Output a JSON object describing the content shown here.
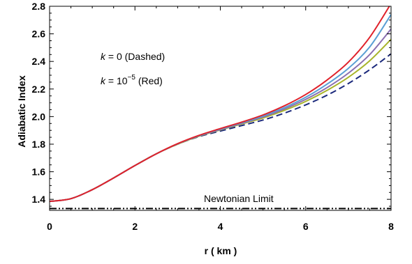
{
  "chart_data": {
    "type": "line",
    "xlabel": "r  ( km )",
    "ylabel": "Adiabatic  Index",
    "xlim": [
      0,
      8
    ],
    "ylim": [
      1.32,
      2.8
    ],
    "x_ticks": [
      0,
      2,
      4,
      6,
      8
    ],
    "y_ticks": [
      1.4,
      1.6,
      1.8,
      2.0,
      2.2,
      2.4,
      2.6,
      2.8
    ],
    "x_tick_labels": [
      "0",
      "2",
      "4",
      "6",
      "8"
    ],
    "y_tick_labels": [
      "1.4",
      "1.6",
      "1.8",
      "2.0",
      "2.2",
      "2.4",
      "2.6",
      "2.8"
    ],
    "grid": false,
    "annotations": {
      "k0_prefix": "k",
      "k0_rest": " = 0  (Dashed)",
      "k1_prefix": "k",
      "k1_mid": " =  10",
      "k1_exp": "−5",
      "k1_rest": " (Red)"
    },
    "newtonian_limit": {
      "label": "Newtonian Limit",
      "value": 1.3333,
      "style": "dash-dot-dot",
      "color": "#000000"
    },
    "x": [
      0,
      0.5,
      1,
      1.5,
      2,
      2.5,
      3,
      3.5,
      4,
      4.5,
      5,
      5.5,
      6,
      6.5,
      7,
      7.5,
      8
    ],
    "series": [
      {
        "values": [
          1.385,
          1.405,
          1.47,
          1.555,
          1.645,
          1.73,
          1.8,
          1.855,
          1.895,
          1.935,
          1.975,
          2.025,
          2.085,
          2.155,
          2.24,
          2.34,
          2.455
        ],
        "color": "#1c2a7c",
        "style": "dashed"
      },
      {
        "values": [
          1.385,
          1.405,
          1.47,
          1.555,
          1.645,
          1.73,
          1.8,
          1.858,
          1.903,
          1.947,
          1.99,
          2.045,
          2.11,
          2.19,
          2.285,
          2.405,
          2.56
        ],
        "color": "#a8b42a",
        "style": "solid"
      },
      {
        "values": [
          1.385,
          1.405,
          1.47,
          1.555,
          1.645,
          1.73,
          1.802,
          1.86,
          1.906,
          1.951,
          1.997,
          2.055,
          2.125,
          2.21,
          2.315,
          2.45,
          2.635
        ],
        "color": "#8a6fb0",
        "style": "solid"
      },
      {
        "values": [
          1.385,
          1.405,
          1.47,
          1.555,
          1.645,
          1.73,
          1.803,
          1.862,
          1.91,
          1.956,
          2.005,
          2.065,
          2.14,
          2.235,
          2.35,
          2.505,
          2.74
        ],
        "color": "#5a9fd4",
        "style": "solid"
      },
      {
        "values": [
          1.385,
          1.405,
          1.47,
          1.555,
          1.645,
          1.73,
          1.804,
          1.864,
          1.913,
          1.96,
          2.012,
          2.078,
          2.16,
          2.265,
          2.395,
          2.575,
          2.82
        ],
        "color": "#e0212a",
        "style": "solid"
      }
    ]
  }
}
